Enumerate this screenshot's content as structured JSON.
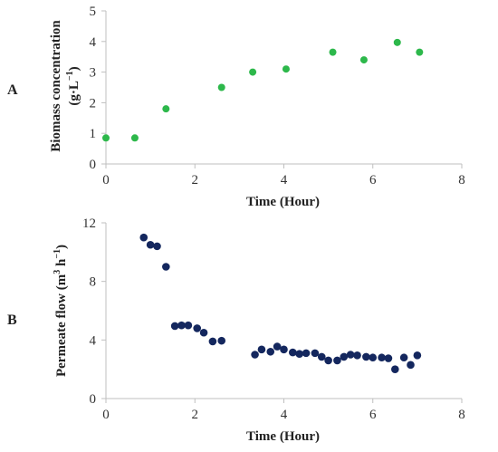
{
  "chart_data": [
    {
      "type": "scatter",
      "panel_label": "A",
      "xlabel": "Time (Hour)",
      "ylabel": "Biomass concentration (g·L⁻¹)",
      "ylabel_lines": [
        "Biomass concentration",
        "(g·L",
        "−1",
        ")"
      ],
      "xlim": [
        0,
        8
      ],
      "ylim": [
        0,
        5
      ],
      "xticks": [
        0,
        2,
        4,
        6,
        8
      ],
      "yticks": [
        0,
        1,
        2,
        3,
        4,
        5
      ],
      "grid": false,
      "legend": "none",
      "marker_color": "#2db84b",
      "series": [
        {
          "points": [
            [
              0.0,
              0.85
            ],
            [
              0.65,
              0.85
            ],
            [
              1.35,
              1.8
            ],
            [
              2.6,
              2.5
            ],
            [
              3.3,
              3.0
            ],
            [
              4.05,
              3.1
            ],
            [
              5.1,
              3.65
            ],
            [
              5.8,
              3.4
            ],
            [
              6.55,
              3.97
            ],
            [
              7.05,
              3.65
            ]
          ]
        }
      ]
    },
    {
      "type": "scatter",
      "panel_label": "B",
      "xlabel": "Time (Hour)",
      "ylabel": "Permeate flow (m³ h⁻¹)",
      "ylabel_lines": [
        "Permeate flow (m",
        "3",
        " h",
        "−1",
        ")"
      ],
      "xlim": [
        0,
        8
      ],
      "ylim": [
        0,
        12
      ],
      "xticks": [
        0,
        2,
        4,
        6,
        8
      ],
      "yticks": [
        0,
        4,
        8,
        12
      ],
      "grid": false,
      "legend": "none",
      "marker_color": "#14275e",
      "series": [
        {
          "points": [
            [
              0.85,
              11.0
            ],
            [
              1.0,
              10.5
            ],
            [
              1.15,
              10.4
            ],
            [
              1.35,
              9.0
            ],
            [
              1.55,
              4.95
            ],
            [
              1.7,
              5.0
            ],
            [
              1.85,
              5.0
            ],
            [
              2.05,
              4.8
            ],
            [
              2.2,
              4.5
            ],
            [
              2.4,
              3.9
            ],
            [
              2.6,
              3.95
            ],
            [
              3.35,
              3.0
            ],
            [
              3.5,
              3.35
            ],
            [
              3.7,
              3.2
            ],
            [
              3.85,
              3.55
            ],
            [
              4.0,
              3.35
            ],
            [
              4.2,
              3.15
            ],
            [
              4.35,
              3.05
            ],
            [
              4.5,
              3.1
            ],
            [
              4.7,
              3.1
            ],
            [
              4.85,
              2.85
            ],
            [
              5.0,
              2.6
            ],
            [
              5.2,
              2.6
            ],
            [
              5.35,
              2.85
            ],
            [
              5.5,
              3.0
            ],
            [
              5.65,
              2.95
            ],
            [
              5.85,
              2.85
            ],
            [
              6.0,
              2.8
            ],
            [
              6.2,
              2.8
            ],
            [
              6.35,
              2.75
            ],
            [
              6.5,
              2.0
            ],
            [
              6.7,
              2.8
            ],
            [
              6.85,
              2.3
            ],
            [
              7.0,
              2.95
            ]
          ]
        }
      ]
    }
  ]
}
